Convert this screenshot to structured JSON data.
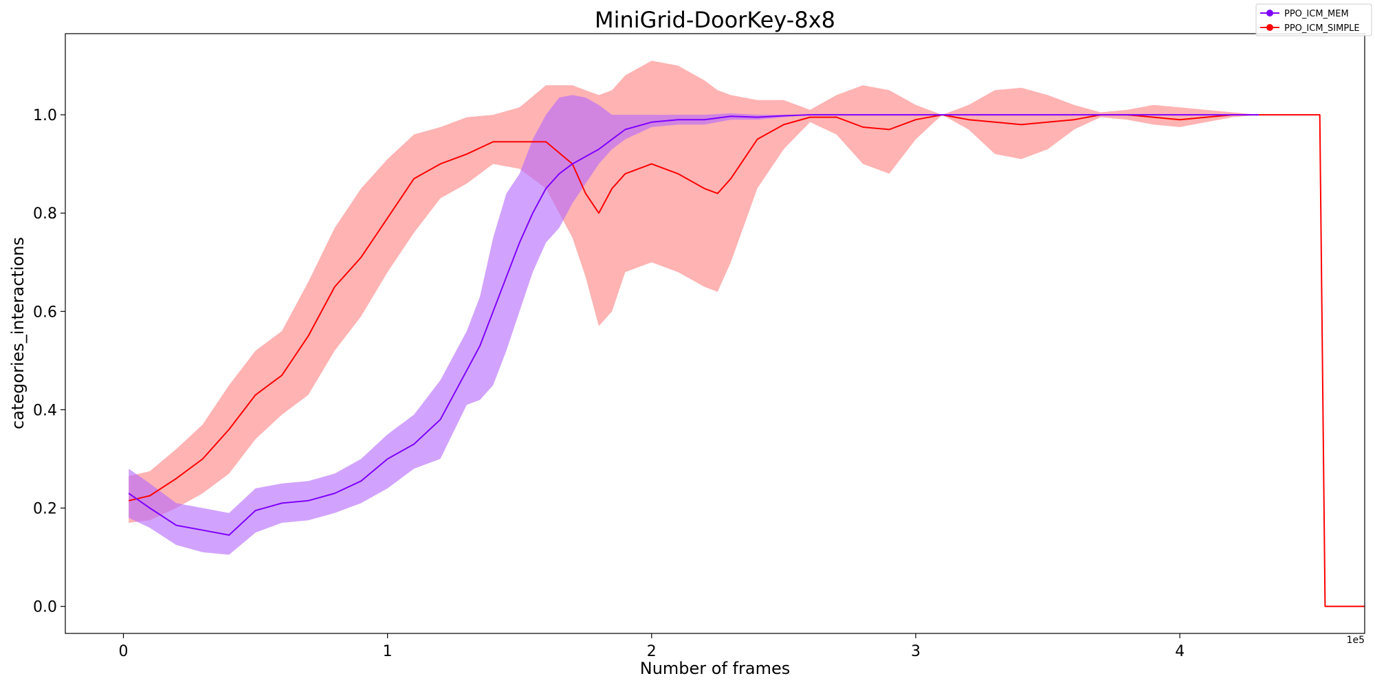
{
  "chart_data": {
    "type": "line",
    "title": "MiniGrid-DoorKey-8x8",
    "xlabel": "Number of frames",
    "ylabel": "categories_interactions",
    "x_offset_label": "1e5",
    "xlim": [
      -0.22,
      4.7
    ],
    "ylim": [
      -0.055,
      1.165
    ],
    "x_ticks": [
      0,
      1,
      2,
      3,
      4
    ],
    "x_tick_labels": [
      "0",
      "1",
      "2",
      "3",
      "4"
    ],
    "y_ticks": [
      0.0,
      0.2,
      0.4,
      0.6,
      0.8,
      1.0
    ],
    "y_tick_labels": [
      "0.0",
      "0.2",
      "0.4",
      "0.6",
      "0.8",
      "1.0"
    ],
    "grid": false,
    "legend_position": "top-right",
    "series": [
      {
        "name": "PPO_ICM_SIMPLE",
        "color": "#ff0000",
        "band_color": "#ff8080",
        "x": [
          0.02,
          0.1,
          0.2,
          0.3,
          0.4,
          0.5,
          0.6,
          0.7,
          0.8,
          0.9,
          1.0,
          1.1,
          1.2,
          1.3,
          1.4,
          1.5,
          1.6,
          1.7,
          1.75,
          1.8,
          1.85,
          1.9,
          2.0,
          2.1,
          2.2,
          2.25,
          2.3,
          2.4,
          2.5,
          2.6,
          2.7,
          2.8,
          2.9,
          3.0,
          3.1,
          3.2,
          3.3,
          3.4,
          3.5,
          3.6,
          3.7,
          3.8,
          3.9,
          4.0,
          4.1,
          4.2,
          4.3,
          4.4,
          4.5,
          4.53,
          4.55,
          4.7
        ],
        "y": [
          0.215,
          0.225,
          0.26,
          0.3,
          0.36,
          0.43,
          0.47,
          0.55,
          0.65,
          0.71,
          0.79,
          0.87,
          0.9,
          0.92,
          0.945,
          0.945,
          0.945,
          0.9,
          0.84,
          0.8,
          0.85,
          0.88,
          0.9,
          0.88,
          0.85,
          0.84,
          0.87,
          0.95,
          0.98,
          0.995,
          0.995,
          0.975,
          0.97,
          0.99,
          1.0,
          0.99,
          0.985,
          0.98,
          0.985,
          0.99,
          1.0,
          1.0,
          0.995,
          0.99,
          0.995,
          1.0,
          1.0,
          1.0,
          1.0,
          1.0,
          0.0,
          0.0
        ],
        "lower": [
          0.17,
          0.175,
          0.2,
          0.23,
          0.27,
          0.34,
          0.39,
          0.43,
          0.52,
          0.59,
          0.68,
          0.76,
          0.83,
          0.86,
          0.9,
          0.89,
          0.85,
          0.75,
          0.67,
          0.57,
          0.6,
          0.68,
          0.7,
          0.68,
          0.65,
          0.64,
          0.7,
          0.85,
          0.93,
          0.985,
          0.96,
          0.9,
          0.88,
          0.95,
          1.0,
          0.97,
          0.92,
          0.91,
          0.93,
          0.97,
          0.995,
          0.99,
          0.98,
          0.975,
          0.985,
          0.995,
          1.0,
          1.0,
          1.0,
          1.0,
          0.0,
          0.0
        ],
        "upper": [
          0.265,
          0.275,
          0.32,
          0.37,
          0.45,
          0.52,
          0.56,
          0.66,
          0.77,
          0.85,
          0.91,
          0.96,
          0.975,
          0.995,
          1.0,
          1.015,
          1.06,
          1.06,
          1.05,
          1.04,
          1.05,
          1.08,
          1.11,
          1.1,
          1.07,
          1.05,
          1.04,
          1.03,
          1.03,
          1.01,
          1.04,
          1.06,
          1.05,
          1.02,
          1.0,
          1.02,
          1.05,
          1.055,
          1.04,
          1.02,
          1.005,
          1.01,
          1.02,
          1.015,
          1.01,
          1.005,
          1.0,
          1.0,
          1.0,
          1.0,
          0.0,
          0.0
        ]
      },
      {
        "name": "PPO_ICM_MEM",
        "color": "#7f00ff",
        "band_color": "#b266ff",
        "x": [
          0.02,
          0.1,
          0.2,
          0.3,
          0.4,
          0.5,
          0.6,
          0.7,
          0.8,
          0.9,
          1.0,
          1.1,
          1.2,
          1.3,
          1.35,
          1.4,
          1.45,
          1.5,
          1.55,
          1.6,
          1.65,
          1.7,
          1.75,
          1.8,
          1.85,
          1.9,
          2.0,
          2.1,
          2.2,
          2.3,
          2.4,
          2.5,
          2.6,
          2.7,
          2.8,
          2.9,
          3.0,
          3.5,
          4.0,
          4.3
        ],
        "y": [
          0.23,
          0.2,
          0.165,
          0.155,
          0.145,
          0.195,
          0.21,
          0.215,
          0.23,
          0.255,
          0.3,
          0.33,
          0.38,
          0.48,
          0.53,
          0.6,
          0.67,
          0.74,
          0.8,
          0.85,
          0.88,
          0.9,
          0.915,
          0.93,
          0.95,
          0.97,
          0.985,
          0.99,
          0.99,
          0.997,
          0.995,
          0.998,
          1.0,
          1.0,
          1.0,
          1.0,
          1.0,
          1.0,
          1.0,
          1.0
        ],
        "lower": [
          0.18,
          0.16,
          0.125,
          0.11,
          0.105,
          0.15,
          0.17,
          0.175,
          0.19,
          0.21,
          0.24,
          0.28,
          0.3,
          0.41,
          0.42,
          0.45,
          0.52,
          0.6,
          0.68,
          0.74,
          0.77,
          0.82,
          0.86,
          0.9,
          0.93,
          0.95,
          0.975,
          0.98,
          0.98,
          0.99,
          0.99,
          0.995,
          1.0,
          1.0,
          1.0,
          1.0,
          1.0,
          1.0,
          1.0,
          1.0
        ],
        "upper": [
          0.28,
          0.25,
          0.21,
          0.2,
          0.19,
          0.24,
          0.25,
          0.255,
          0.27,
          0.3,
          0.35,
          0.39,
          0.46,
          0.56,
          0.63,
          0.75,
          0.84,
          0.88,
          0.95,
          1.0,
          1.035,
          1.04,
          1.035,
          1.02,
          1.0,
          1.0,
          1.0,
          1.0,
          1.0,
          1.003,
          1.0,
          1.0,
          1.0,
          1.0,
          1.0,
          1.0,
          1.0,
          1.0,
          1.0,
          1.0
        ]
      }
    ]
  },
  "legend": {
    "items": [
      {
        "label": "PPO_ICM_MEM",
        "color": "#7f00ff"
      },
      {
        "label": "PPO_ICM_SIMPLE",
        "color": "#ff0000"
      }
    ]
  }
}
